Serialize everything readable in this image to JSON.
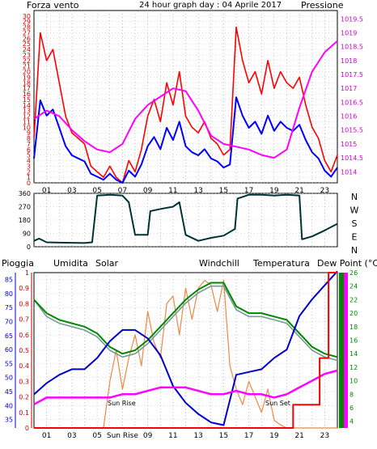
{
  "header": {
    "left_label": "Forza vento",
    "title": "24 hour graph day : 04 Aprile 2017",
    "right_label": "Pressione"
  },
  "colors": {
    "wind_gust": "#ff0000",
    "wind_avg": "#0000ff",
    "pressure": "#ff00ff",
    "direction": "#003333",
    "humidity": "#0000cc",
    "solar": "#ee8844",
    "windchill": "#779999",
    "temperature": "#008800",
    "dewpoint": "#ff00ff",
    "rain": "#ff0000"
  },
  "x_ticks": [
    "01",
    "03",
    "05",
    "07",
    "09",
    "11",
    "13",
    "15",
    "17",
    "19",
    "21",
    "23"
  ],
  "bottom_x_ticks": [
    "01",
    "03",
    "05",
    "Sun Rise",
    "09",
    "11",
    "13",
    "15",
    "17",
    "19",
    "21",
    "23"
  ],
  "direction_labels": [
    "N",
    "W",
    "S",
    "E",
    "N"
  ],
  "bottom_header": {
    "rain": "Pioggia",
    "humidity": "Umidita",
    "solar": "Solar",
    "windchill": "Windchill",
    "temperature": "Temperatura",
    "dewpoint": "Dew Point (°C)"
  },
  "annotations": {
    "sunrise": "Sun Rise",
    "sunset": "Sun Set"
  },
  "chart_data": [
    {
      "type": "line",
      "series": [
        {
          "name": "Forza vento",
          "values": [
            [
              0,
              8
            ],
            [
              0.5,
              27
            ],
            [
              1,
              22
            ],
            [
              1.5,
              24
            ],
            [
              2,
              18
            ],
            [
              2.5,
              12
            ],
            [
              3,
              9
            ],
            [
              3.5,
              8
            ],
            [
              4,
              7
            ],
            [
              4.5,
              3
            ],
            [
              5,
              2
            ],
            [
              5.5,
              1
            ],
            [
              6,
              3
            ],
            [
              6.5,
              1
            ],
            [
              7,
              0
            ],
            [
              7.5,
              4
            ],
            [
              8,
              2
            ],
            [
              8.5,
              6
            ],
            [
              9,
              12
            ],
            [
              9.5,
              15
            ],
            [
              10,
              11
            ],
            [
              10.5,
              18
            ],
            [
              11,
              14
            ],
            [
              11.5,
              20
            ],
            [
              12,
              12
            ],
            [
              12.5,
              10
            ],
            [
              13,
              9
            ],
            [
              13.5,
              11
            ],
            [
              14,
              8
            ],
            [
              14.5,
              7
            ],
            [
              15,
              5
            ],
            [
              15.5,
              6
            ],
            [
              16,
              28
            ],
            [
              16.5,
              22
            ],
            [
              17,
              18
            ],
            [
              17.5,
              20
            ],
            [
              18,
              16
            ],
            [
              18.5,
              22
            ],
            [
              19,
              17
            ],
            [
              19.5,
              20
            ],
            [
              20,
              18
            ],
            [
              20.5,
              17
            ],
            [
              21,
              19
            ],
            [
              21.5,
              14
            ],
            [
              22,
              10
            ],
            [
              22.5,
              8
            ],
            [
              23,
              4
            ],
            [
              23.5,
              2
            ],
            [
              24,
              5
            ]
          ]
        },
        {
          "name": "Pressione",
          "values": [
            [
              0,
              1015.9
            ],
            [
              1,
              1016.2
            ],
            [
              2,
              1016.0
            ],
            [
              3,
              1015.5
            ],
            [
              4,
              1015.1
            ],
            [
              5,
              1014.8
            ],
            [
              6,
              1014.7
            ],
            [
              7,
              1015.0
            ],
            [
              8,
              1015.9
            ],
            [
              9,
              1016.4
            ],
            [
              10,
              1016.7
            ],
            [
              11,
              1017.0
            ],
            [
              12,
              1016.9
            ],
            [
              13,
              1016.2
            ],
            [
              14,
              1015.3
            ],
            [
              15,
              1015.0
            ],
            [
              16,
              1014.9
            ],
            [
              17,
              1014.8
            ],
            [
              18,
              1014.6
            ],
            [
              19,
              1014.5
            ],
            [
              20,
              1014.8
            ],
            [
              21,
              1016.3
            ],
            [
              22,
              1017.6
            ],
            [
              23,
              1018.3
            ],
            [
              24,
              1018.7
            ]
          ]
        }
      ],
      "xlim": [
        0,
        24
      ],
      "ylim": [
        0,
        31
      ],
      "y_ticks": [
        0,
        1,
        2,
        3,
        4,
        5,
        6,
        7,
        8,
        9,
        10,
        11,
        12,
        13,
        14,
        15,
        16,
        17,
        18,
        19,
        20,
        21,
        22,
        23,
        24,
        25,
        26,
        27,
        28,
        29,
        30
      ],
      "y2_ticks": [
        1014,
        1014.5,
        1015,
        1015.5,
        1016,
        1016.5,
        1017,
        1017.5,
        1018,
        1018.5,
        1019,
        1019.5
      ],
      "y2lim": [
        1013.6,
        1019.8
      ]
    },
    {
      "type": "line",
      "series": [
        {
          "values": [
            [
              0,
              40
            ],
            [
              0.4,
              55
            ],
            [
              1,
              30
            ],
            [
              2,
              28
            ],
            [
              3,
              27
            ],
            [
              4,
              25
            ],
            [
              4.6,
              30
            ],
            [
              5,
              345
            ],
            [
              6,
              350
            ],
            [
              7,
              345
            ],
            [
              7.5,
              300
            ],
            [
              8,
              80
            ],
            [
              9,
              80
            ],
            [
              9.2,
              240
            ],
            [
              10,
              255
            ],
            [
              11,
              270
            ],
            [
              11.5,
              300
            ],
            [
              12,
              80
            ],
            [
              13,
              40
            ],
            [
              14,
              60
            ],
            [
              15,
              75
            ],
            [
              15.9,
              120
            ],
            [
              16.1,
              325
            ],
            [
              17,
              350
            ],
            [
              18,
              350
            ],
            [
              19,
              345
            ],
            [
              20,
              350
            ],
            [
              21,
              345
            ],
            [
              21.2,
              50
            ],
            [
              22,
              70
            ],
            [
              23,
              110
            ],
            [
              24,
              155
            ]
          ]
        }
      ],
      "xlim": [
        0,
        24
      ],
      "ylim": [
        0,
        360
      ],
      "y_ticks": [
        0,
        90,
        180,
        270,
        360
      ]
    },
    {
      "type": "line",
      "series": [
        {
          "name": "Umidita",
          "values": [
            [
              0,
              44
            ],
            [
              1,
              48
            ],
            [
              2,
              51
            ],
            [
              3,
              53
            ],
            [
              4,
              53
            ],
            [
              5,
              57
            ],
            [
              6,
              63
            ],
            [
              7,
              67
            ],
            [
              8,
              67
            ],
            [
              9,
              64
            ],
            [
              10,
              58
            ],
            [
              11,
              47
            ],
            [
              12,
              41
            ],
            [
              13,
              37
            ],
            [
              14,
              34
            ],
            [
              15,
              33
            ],
            [
              16,
              51
            ],
            [
              17,
              52
            ],
            [
              18,
              53
            ],
            [
              19,
              57
            ],
            [
              20,
              60
            ],
            [
              21,
              72
            ],
            [
              22,
              78
            ],
            [
              23,
              83
            ],
            [
              24,
              88
            ]
          ]
        },
        {
          "name": "Temperatura",
          "values": [
            [
              0,
              22
            ],
            [
              1,
              20
            ],
            [
              2,
              19
            ],
            [
              3,
              18.5
            ],
            [
              4,
              18
            ],
            [
              5,
              17
            ],
            [
              6,
              15
            ],
            [
              7,
              14
            ],
            [
              8,
              14.5
            ],
            [
              9,
              16
            ],
            [
              10,
              18
            ],
            [
              11,
              20
            ],
            [
              12,
              22
            ],
            [
              13,
              23.5
            ],
            [
              14,
              24.5
            ],
            [
              15,
              24.5
            ],
            [
              16,
              21
            ],
            [
              17,
              20
            ],
            [
              18,
              20
            ],
            [
              19,
              19.5
            ],
            [
              20,
              19
            ],
            [
              21,
              17
            ],
            [
              22,
              15
            ],
            [
              23,
              14
            ],
            [
              24,
              13.5
            ]
          ]
        },
        {
          "name": "Windchill",
          "values": [
            [
              0,
              22
            ],
            [
              1,
              19.5
            ],
            [
              2,
              18.5
            ],
            [
              3,
              18
            ],
            [
              4,
              17.5
            ],
            [
              5,
              16.5
            ],
            [
              6,
              14.5
            ],
            [
              7,
              13.5
            ],
            [
              8,
              14
            ],
            [
              9,
              15.5
            ],
            [
              10,
              17.5
            ],
            [
              11,
              19.5
            ],
            [
              12,
              21.5
            ],
            [
              13,
              23
            ],
            [
              14,
              24
            ],
            [
              15,
              24
            ],
            [
              16,
              20.5
            ],
            [
              17,
              19.5
            ],
            [
              18,
              19.5
            ],
            [
              19,
              19
            ],
            [
              20,
              18.5
            ],
            [
              21,
              16.5
            ],
            [
              22,
              14.5
            ],
            [
              23,
              13.5
            ],
            [
              24,
              13
            ]
          ]
        },
        {
          "name": "Dew Point (°C)",
          "values": [
            [
              0,
              6.5
            ],
            [
              1,
              7.5
            ],
            [
              2,
              7.5
            ],
            [
              3,
              7.5
            ],
            [
              4,
              7.5
            ],
            [
              5,
              7.5
            ],
            [
              6,
              7.5
            ],
            [
              7,
              8
            ],
            [
              8,
              8
            ],
            [
              9,
              8.5
            ],
            [
              10,
              9
            ],
            [
              11,
              9
            ],
            [
              12,
              9
            ],
            [
              13,
              8.5
            ],
            [
              14,
              8
            ],
            [
              15,
              8
            ],
            [
              16,
              8.5
            ],
            [
              17,
              8
            ],
            [
              18,
              8
            ],
            [
              19,
              7.5
            ],
            [
              20,
              8
            ],
            [
              21,
              9
            ],
            [
              22,
              10
            ],
            [
              23,
              11
            ],
            [
              24,
              11.5
            ]
          ]
        },
        {
          "name": "Solar",
          "values": [
            [
              0,
              0
            ],
            [
              5.5,
              0
            ],
            [
              6,
              0.3
            ],
            [
              6.5,
              0.5
            ],
            [
              7,
              0.25
            ],
            [
              7.5,
              0.45
            ],
            [
              8,
              0.6
            ],
            [
              8.5,
              0.4
            ],
            [
              9,
              0.75
            ],
            [
              9.5,
              0.55
            ],
            [
              10,
              0.45
            ],
            [
              10.5,
              0.8
            ],
            [
              11,
              0.85
            ],
            [
              11.5,
              0.6
            ],
            [
              12,
              0.9
            ],
            [
              12.5,
              0.7
            ],
            [
              13,
              0.9
            ],
            [
              13.5,
              0.95
            ],
            [
              14,
              0.92
            ],
            [
              14.5,
              0.75
            ],
            [
              15,
              0.95
            ],
            [
              15.5,
              0.4
            ],
            [
              16,
              0.25
            ],
            [
              16.5,
              0.15
            ],
            [
              17,
              0.3
            ],
            [
              17.5,
              0.2
            ],
            [
              18,
              0.1
            ],
            [
              18.5,
              0.25
            ],
            [
              19,
              0.05
            ],
            [
              19.5,
              0.02
            ],
            [
              20,
              0
            ],
            [
              24,
              0
            ]
          ]
        },
        {
          "name": "Pioggia",
          "values": [
            [
              0,
              0
            ],
            [
              20.5,
              0
            ],
            [
              20.5,
              0.15
            ],
            [
              22.6,
              0.15
            ],
            [
              22.6,
              0.45
            ],
            [
              23.3,
              0.45
            ],
            [
              23.3,
              1
            ],
            [
              24,
              1
            ]
          ]
        }
      ],
      "xlim": [
        0,
        24
      ],
      "y_ticks_humidity": [
        35,
        40,
        45,
        50,
        55,
        60,
        65,
        70,
        75,
        80,
        85
      ],
      "ylim_humidity": [
        32,
        87.5
      ],
      "y_ticks_rain": [
        0,
        0.1,
        0.2,
        0.3,
        0.4,
        0.5,
        0.6,
        0.7,
        0.8,
        0.9,
        1
      ],
      "ylim_rain": [
        0,
        1
      ],
      "y_ticks_temp": [
        4,
        6,
        8,
        10,
        12,
        14,
        16,
        18,
        20,
        22,
        24,
        26
      ],
      "ylim_temp": [
        3,
        26
      ]
    }
  ]
}
